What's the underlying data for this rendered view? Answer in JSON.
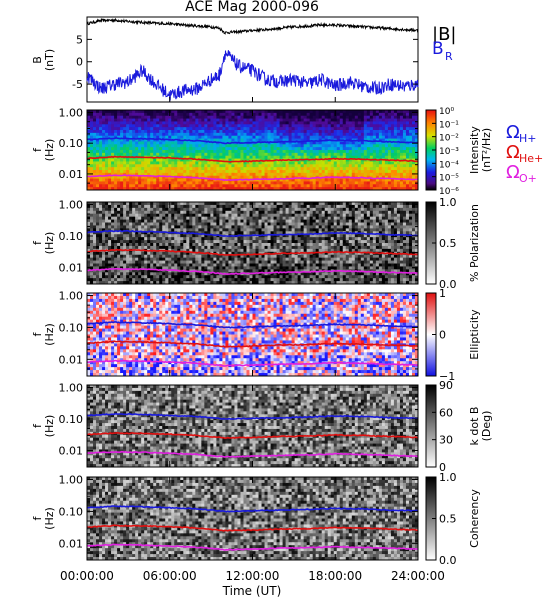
{
  "title": "ACE Mag 2000-096",
  "colors": {
    "B_magnitude": "#000000",
    "B_R": "#1a1adc",
    "Omega_H": "#1a1adc",
    "Omega_He": "#e01010",
    "Omega_O": "#e020e0"
  },
  "legend_top": {
    "B_magnitude": "|B|",
    "B_R": "B",
    "B_R_sub": "R"
  },
  "gyro_labels": {
    "symbol": "Ω",
    "H": "H+",
    "He": "He+",
    "O": "O+"
  },
  "xaxis": {
    "label": "Time (UT)",
    "ticks": [
      "00:00:00",
      "06:00:00",
      "12:00:00",
      "18:00:00",
      "24:00:00"
    ]
  },
  "chart_data": [
    {
      "type": "line",
      "panel": "field",
      "ylabel": "B",
      "yunit": "(nT)",
      "ylim": [
        -9,
        10
      ],
      "yticks": [
        "5",
        "0",
        "-5"
      ],
      "x": [
        0,
        1,
        2,
        3,
        4,
        5,
        6,
        7,
        8,
        9,
        9.6,
        10,
        11,
        12,
        13,
        14,
        15,
        16,
        17,
        18,
        19,
        20,
        21,
        22,
        23,
        24
      ],
      "series": [
        {
          "name": "|B|",
          "values": [
            8.5,
            9.2,
            9.3,
            9.0,
            8.8,
            8.6,
            8.5,
            8.2,
            8.0,
            7.8,
            7.5,
            6.5,
            6.7,
            7.0,
            7.2,
            7.5,
            7.8,
            8.0,
            8.2,
            8.2,
            8.0,
            7.8,
            7.6,
            7.4,
            7.2,
            7.0
          ]
        },
        {
          "name": "B_R",
          "values": [
            -3,
            -6,
            -5,
            -4.5,
            -2,
            -5,
            -7.5,
            -6.5,
            -6,
            -4,
            -3,
            2,
            -1,
            -2,
            -4,
            -4.5,
            -4,
            -5,
            -4,
            -5.5,
            -4.5,
            -5.5,
            -6,
            -5,
            -5.5,
            -5
          ]
        }
      ]
    },
    {
      "type": "heatmap",
      "panel": "intensity",
      "ylabel": "f",
      "yunit": "(Hz)",
      "yscale": "log",
      "ylim": [
        0.003,
        1.2
      ],
      "yticks": [
        "1.00",
        "0.10",
        "0.01"
      ],
      "colorbar": {
        "label": "Intensity",
        "unit": "(nT²/Hz)",
        "scale": "log",
        "range": [
          1e-06,
          1
        ],
        "ticks": [
          "10⁰",
          "10⁻¹",
          "10⁻²",
          "10⁻³",
          "10⁻⁴",
          "10⁻⁵",
          "10⁻⁶"
        ]
      }
    },
    {
      "type": "heatmap",
      "panel": "polarization",
      "ylabel": "f",
      "yunit": "(Hz)",
      "yscale": "log",
      "ylim": [
        0.003,
        1.2
      ],
      "yticks": [
        "1.00",
        "0.10",
        "0.01"
      ],
      "colorbar": {
        "label": "% Polarization",
        "range": [
          0,
          1
        ],
        "ticks": [
          "1.0",
          "0.5",
          "0.0"
        ]
      }
    },
    {
      "type": "heatmap",
      "panel": "ellipticity",
      "ylabel": "f",
      "yunit": "(Hz)",
      "yscale": "log",
      "ylim": [
        0.003,
        1.2
      ],
      "yticks": [
        "1.00",
        "0.10",
        "0.01"
      ],
      "colorbar": {
        "label": "Ellipticity",
        "range": [
          -1,
          1
        ],
        "ticks": [
          "1",
          "0",
          "−1"
        ]
      }
    },
    {
      "type": "heatmap",
      "panel": "kdotb",
      "ylabel": "f",
      "yunit": "(Hz)",
      "yscale": "log",
      "ylim": [
        0.003,
        1.2
      ],
      "yticks": [
        "1.00",
        "0.10",
        "0.01"
      ],
      "colorbar": {
        "label": "k dot B",
        "unit": "(Deg)",
        "range": [
          0,
          90
        ],
        "ticks": [
          "90",
          "60",
          "30",
          "0"
        ]
      }
    },
    {
      "type": "heatmap",
      "panel": "coherency",
      "ylabel": "f",
      "yunit": "(Hz)",
      "yscale": "log",
      "ylim": [
        0.003,
        1.2
      ],
      "yticks": [
        "1.00",
        "0.10",
        "0.01"
      ],
      "colorbar": {
        "label": "Coherency",
        "range": [
          0,
          1
        ],
        "ticks": [
          "1.0",
          "0.5",
          "0.0"
        ]
      }
    },
    {
      "type": "line",
      "panel": "gyrofrequencies",
      "x": [
        0,
        2,
        4,
        6,
        8,
        10,
        12,
        14,
        16,
        18,
        20,
        22,
        24
      ],
      "series": [
        {
          "name": "Ω H+",
          "values": [
            0.13,
            0.145,
            0.14,
            0.13,
            0.12,
            0.1,
            0.105,
            0.11,
            0.115,
            0.125,
            0.12,
            0.11,
            0.105
          ]
        },
        {
          "name": "Ω He+",
          "values": [
            0.032,
            0.036,
            0.035,
            0.033,
            0.03,
            0.025,
            0.026,
            0.028,
            0.029,
            0.031,
            0.03,
            0.028,
            0.026
          ]
        },
        {
          "name": "Ω O+",
          "values": [
            0.0082,
            0.009,
            0.0088,
            0.0082,
            0.0075,
            0.0063,
            0.0066,
            0.007,
            0.0073,
            0.0078,
            0.0075,
            0.007,
            0.0066
          ]
        }
      ]
    }
  ]
}
